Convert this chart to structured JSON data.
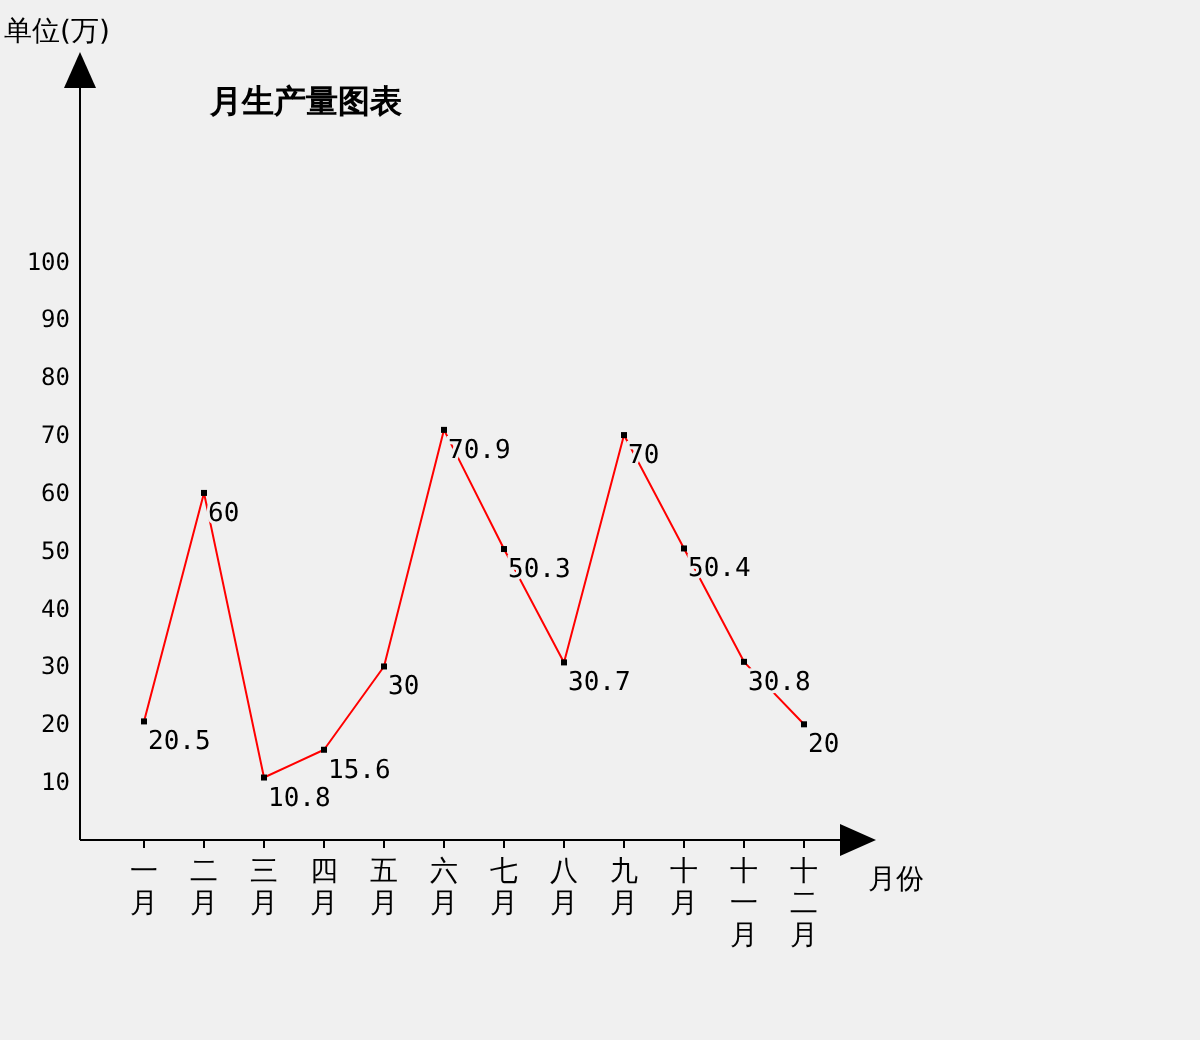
{
  "chart_data": {
    "type": "line",
    "title": "月生产量图表",
    "ylabel": "单位(万)",
    "xlabel": "月份",
    "categories": [
      "一月",
      "二月",
      "三月",
      "四月",
      "五月",
      "六月",
      "七月",
      "八月",
      "九月",
      "十月",
      "十一月",
      "十二月"
    ],
    "series": [
      {
        "color": "#ff0000",
        "values": [
          20.5,
          60,
          10.8,
          15.6,
          30,
          70.9,
          50.3,
          30.7,
          70,
          50.4,
          30.8,
          20
        ]
      }
    ],
    "ylim": [
      0,
      130
    ],
    "yticks": [
      10,
      20,
      30,
      40,
      50,
      60,
      70,
      80,
      90,
      100
    ],
    "marker": "square",
    "data_labels": true,
    "grid": false
  }
}
